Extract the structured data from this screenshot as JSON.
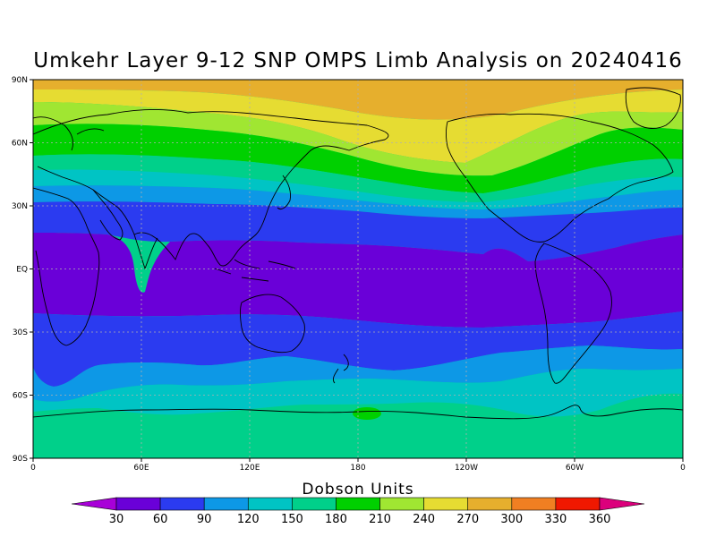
{
  "title": "Umkehr Layer 9-12 SNP OMPS Limb Analysis on 20240416",
  "y_ticks": [
    "90N",
    "60N",
    "30N",
    "EQ",
    "30S",
    "60S",
    "90S"
  ],
  "x_ticks": [
    "0",
    "60E",
    "120E",
    "180",
    "120W",
    "60W",
    "0"
  ],
  "colorbar": {
    "title": "Dobson Units",
    "labels": [
      "30",
      "60",
      "90",
      "120",
      "150",
      "180",
      "210",
      "240",
      "270",
      "300",
      "330",
      "360"
    ],
    "colors": [
      "#a800d8",
      "#6a00d8",
      "#2b3bf0",
      "#0d98e6",
      "#00c4c4",
      "#00d08a",
      "#00d000",
      "#a0e632",
      "#e6dc32",
      "#e6af2d",
      "#f07f22",
      "#f01800",
      "#dc007c"
    ]
  },
  "map": {
    "projection": "equirectangular",
    "lon_range": "0 to 360",
    "lat_range": "90S to 90N",
    "grid": "dotted every 30 degrees",
    "bands": [
      {
        "level": "above 270",
        "color": "#e6af2d"
      },
      {
        "level": "240-270",
        "color": "#e6dc32"
      },
      {
        "level": "210-240",
        "color": "#a0e632"
      },
      {
        "level": "180-210",
        "color": "#00d000"
      },
      {
        "level": "150-180",
        "color": "#00d08a"
      },
      {
        "level": "120-150",
        "color": "#00c4c4"
      },
      {
        "level": "90-120",
        "color": "#0d98e6"
      },
      {
        "level": "60-90",
        "color": "#2b3bf0"
      },
      {
        "level": "30-60",
        "color": "#6a00d8"
      }
    ]
  }
}
